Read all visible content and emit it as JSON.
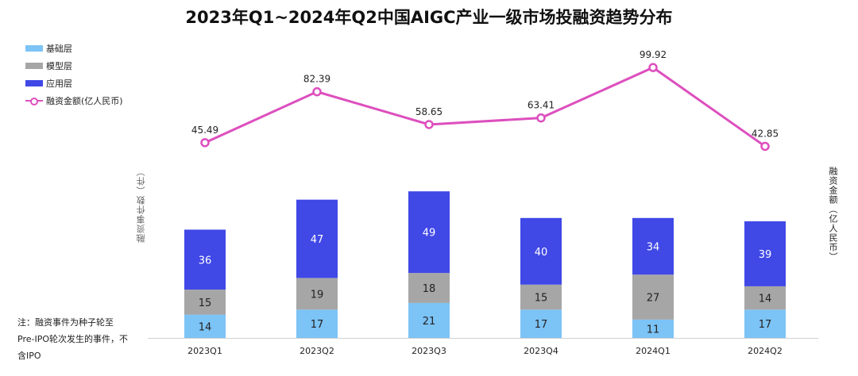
{
  "title": "2023年Q1~2024年Q2中国AIGC产业一级市场投融资趋势分布",
  "legend": {
    "items": [
      {
        "label": "基础层",
        "color": "#7cc3f6"
      },
      {
        "label": "模型层",
        "color": "#a6a6a6"
      },
      {
        "label": "应用层",
        "color": "#4048e6"
      }
    ],
    "line_label": "融资金额(亿人民币)",
    "line_color": "#dd4fbe"
  },
  "y_left_label": "融资事件数（件）",
  "y_right_label": "融资金额（亿人民币）",
  "note": "注：融资事件为种子轮至Pre-IPO轮次发生的事件，不含IPO",
  "chart_data": {
    "type": "bar",
    "stacked": true,
    "categories": [
      "2023Q1",
      "2023Q2",
      "2023Q3",
      "2023Q4",
      "2024Q1",
      "2024Q2"
    ],
    "series": [
      {
        "name": "基础层",
        "values": [
          14,
          17,
          21,
          17,
          11,
          17
        ],
        "color": "#7cc3f6"
      },
      {
        "name": "模型层",
        "values": [
          15,
          19,
          18,
          15,
          27,
          14
        ],
        "color": "#a6a6a6"
      },
      {
        "name": "应用层",
        "values": [
          36,
          47,
          49,
          40,
          34,
          39
        ],
        "color": "#4048e6"
      }
    ],
    "line_series": {
      "name": "融资金额(亿人民币)",
      "type": "line",
      "axis": "right",
      "values": [
        45.49,
        82.39,
        58.65,
        63.41,
        99.92,
        42.85
      ],
      "labels": [
        "45.49",
        "82.39",
        "58.65",
        "63.41",
        "99.92",
        "42.85"
      ],
      "color": "#dd4fbe"
    },
    "legend_position": "top-left",
    "grid": false
  }
}
